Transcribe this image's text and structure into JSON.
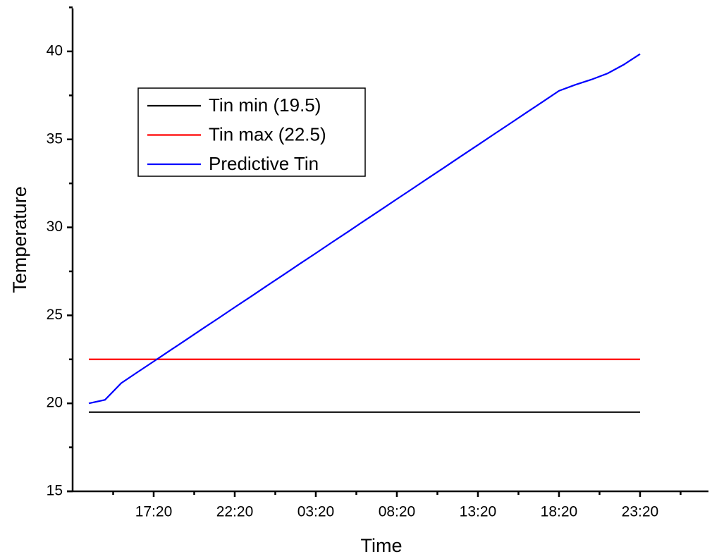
{
  "chart_data": {
    "type": "line",
    "xlabel": "Time",
    "ylabel": "Temperature",
    "x": [
      13.33,
      14.33,
      15.33,
      16.33,
      17.33,
      18.33,
      19.33,
      20.33,
      21.33,
      22.33,
      23.33,
      24.33,
      25.33,
      26.33,
      27.33,
      28.33,
      29.33,
      30.33,
      31.33,
      32.33,
      33.33,
      34.33,
      35.33,
      36.33,
      37.33,
      38.33,
      39.33,
      40.33,
      41.33,
      42.33,
      43.33,
      44.33,
      45.33,
      46.33,
      47.33
    ],
    "series": [
      {
        "name": "Tin min (19.5)",
        "color": "#000000",
        "values": [
          19.5,
          19.5,
          19.5,
          19.5,
          19.5,
          19.5,
          19.5,
          19.5,
          19.5,
          19.5,
          19.5,
          19.5,
          19.5,
          19.5,
          19.5,
          19.5,
          19.5,
          19.5,
          19.5,
          19.5,
          19.5,
          19.5,
          19.5,
          19.5,
          19.5,
          19.5,
          19.5,
          19.5,
          19.5,
          19.5,
          19.5,
          19.5,
          19.5,
          19.5,
          19.5
        ]
      },
      {
        "name": "Tin max (22.5)",
        "color": "#ff0000",
        "values": [
          22.5,
          22.5,
          22.5,
          22.5,
          22.5,
          22.5,
          22.5,
          22.5,
          22.5,
          22.5,
          22.5,
          22.5,
          22.5,
          22.5,
          22.5,
          22.5,
          22.5,
          22.5,
          22.5,
          22.5,
          22.5,
          22.5,
          22.5,
          22.5,
          22.5,
          22.5,
          22.5,
          22.5,
          22.5,
          22.5,
          22.5,
          22.5,
          22.5,
          22.5,
          22.5
        ]
      },
      {
        "name": "Predictive Tin",
        "color": "#0000ff",
        "values": [
          20.0,
          20.2,
          21.15,
          21.77,
          22.38,
          23.0,
          23.61,
          24.23,
          24.84,
          25.46,
          26.07,
          26.69,
          27.3,
          27.92,
          28.53,
          29.15,
          29.76,
          30.38,
          30.99,
          31.61,
          32.22,
          32.84,
          33.45,
          34.07,
          34.68,
          35.3,
          35.91,
          36.53,
          37.14,
          37.76,
          38.1,
          38.4,
          38.75,
          39.25,
          39.85
        ]
      }
    ],
    "xlim": [
      12.33,
      51.55
    ],
    "xticks": [
      {
        "value": 17.33,
        "label": "17:20"
      },
      {
        "value": 22.33,
        "label": "22:20"
      },
      {
        "value": 27.33,
        "label": "03:20"
      },
      {
        "value": 32.33,
        "label": "08:20"
      },
      {
        "value": 37.33,
        "label": "13:20"
      },
      {
        "value": 42.33,
        "label": "18:20"
      },
      {
        "value": 47.33,
        "label": "23:20"
      }
    ],
    "xminorticks": [
      14.83,
      19.83,
      24.83,
      29.83,
      34.83,
      39.83,
      44.83,
      49.83
    ],
    "ylim": [
      15,
      42.44
    ],
    "yticks": [
      15,
      20,
      25,
      30,
      35,
      40
    ],
    "yminorticks": [
      17.5,
      22.5,
      27.5,
      32.5,
      37.5,
      42.5
    ],
    "grid": false
  }
}
